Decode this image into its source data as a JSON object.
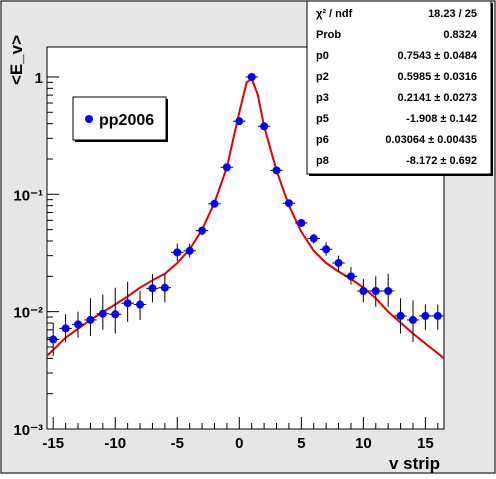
{
  "legend": {
    "label": "pp2006"
  },
  "stats": {
    "rows": [
      {
        "label": "χ² / ndf",
        "value": "18.23 / 25"
      },
      {
        "label": "Prob",
        "value": "0.8324"
      },
      {
        "label": "p0",
        "value": "0.7543 ± 0.0484"
      },
      {
        "label": "p2",
        "value": "0.5985 ± 0.0316"
      },
      {
        "label": "p3",
        "value": "0.2141 ± 0.0273"
      },
      {
        "label": "p5",
        "value": "-1.908 ± 0.142"
      },
      {
        "label": "p6",
        "value": "0.03064 ± 0.00435"
      },
      {
        "label": "p8",
        "value": "-8.172 ± 0.692"
      }
    ]
  },
  "colors": {
    "marker": "#0000ff",
    "fit": "#e00000",
    "frame": "#000000",
    "canvas_bg": "#e6e6e6",
    "pad_bg": "#ffffff"
  },
  "chart_data": {
    "type": "scatter",
    "xlabel": "v strip",
    "ylabel": "<E_v>",
    "xlim": [
      -15.5,
      16.5
    ],
    "ylim": [
      0.001,
      1.8
    ],
    "yscale": "log",
    "x_ticks": [
      "-15",
      "-10",
      "-5",
      "0",
      "5",
      "10",
      "15"
    ],
    "y_ticks": [
      "10⁻³",
      "10⁻²",
      "10⁻¹",
      "1"
    ],
    "legend_position": "top-left",
    "series": [
      {
        "name": "pp2006",
        "points": [
          {
            "x": -15,
            "y": 0.0058,
            "elo": 0.0042,
            "ehi": 0.008
          },
          {
            "x": -14,
            "y": 0.0072,
            "elo": 0.0055,
            "ehi": 0.0095
          },
          {
            "x": -13,
            "y": 0.0078,
            "elo": 0.006,
            "ehi": 0.01
          },
          {
            "x": -12,
            "y": 0.0085,
            "elo": 0.0062,
            "ehi": 0.013
          },
          {
            "x": -11,
            "y": 0.0096,
            "elo": 0.007,
            "ehi": 0.014
          },
          {
            "x": -10,
            "y": 0.0095,
            "elo": 0.0065,
            "ehi": 0.016
          },
          {
            "x": -9,
            "y": 0.0118,
            "elo": 0.0082,
            "ehi": 0.018
          },
          {
            "x": -8,
            "y": 0.0115,
            "elo": 0.0085,
            "ehi": 0.015
          },
          {
            "x": -7,
            "y": 0.0158,
            "elo": 0.012,
            "ehi": 0.021
          },
          {
            "x": -6,
            "y": 0.016,
            "elo": 0.012,
            "ehi": 0.021
          },
          {
            "x": -5,
            "y": 0.032,
            "elo": 0.027,
            "ehi": 0.038
          },
          {
            "x": -4,
            "y": 0.033,
            "elo": 0.029,
            "ehi": 0.038
          },
          {
            "x": -3,
            "y": 0.049,
            "elo": 0.045,
            "ehi": 0.053
          },
          {
            "x": -2,
            "y": 0.083,
            "elo": 0.079,
            "ehi": 0.087
          },
          {
            "x": -1,
            "y": 0.17,
            "elo": 0.165,
            "ehi": 0.175
          },
          {
            "x": 0,
            "y": 0.42,
            "elo": 0.41,
            "ehi": 0.43
          },
          {
            "x": 1,
            "y": 1.0,
            "elo": 0.98,
            "ehi": 1.02
          },
          {
            "x": 2,
            "y": 0.38,
            "elo": 0.37,
            "ehi": 0.39
          },
          {
            "x": 3,
            "y": 0.16,
            "elo": 0.155,
            "ehi": 0.165
          },
          {
            "x": 4,
            "y": 0.084,
            "elo": 0.08,
            "ehi": 0.088
          },
          {
            "x": 5,
            "y": 0.057,
            "elo": 0.053,
            "ehi": 0.061
          },
          {
            "x": 6,
            "y": 0.042,
            "elo": 0.038,
            "ehi": 0.046
          },
          {
            "x": 7,
            "y": 0.034,
            "elo": 0.03,
            "ehi": 0.039
          },
          {
            "x": 8,
            "y": 0.026,
            "elo": 0.022,
            "ehi": 0.03
          },
          {
            "x": 9,
            "y": 0.02,
            "elo": 0.017,
            "ehi": 0.024
          },
          {
            "x": 10,
            "y": 0.015,
            "elo": 0.012,
            "ehi": 0.019
          },
          {
            "x": 11,
            "y": 0.015,
            "elo": 0.011,
            "ehi": 0.02
          },
          {
            "x": 12,
            "y": 0.015,
            "elo": 0.011,
            "ehi": 0.021
          },
          {
            "x": 13,
            "y": 0.0092,
            "elo": 0.0065,
            "ehi": 0.013
          },
          {
            "x": 14,
            "y": 0.0085,
            "elo": 0.0055,
            "ehi": 0.0125
          },
          {
            "x": 15,
            "y": 0.0092,
            "elo": 0.007,
            "ehi": 0.0115
          },
          {
            "x": 16,
            "y": 0.0092,
            "elo": 0.007,
            "ehi": 0.0115
          }
        ]
      },
      {
        "name": "",
        "kind": "fit-curve",
        "points": [
          {
            "x": -15.5,
            "y": 0.0042
          },
          {
            "x": -14,
            "y": 0.006
          },
          {
            "x": -12,
            "y": 0.0085
          },
          {
            "x": -10,
            "y": 0.0115
          },
          {
            "x": -9,
            "y": 0.0135
          },
          {
            "x": -8,
            "y": 0.016
          },
          {
            "x": -7,
            "y": 0.0185
          },
          {
            "x": -6,
            "y": 0.021
          },
          {
            "x": -5,
            "y": 0.026
          },
          {
            "x": -4,
            "y": 0.034
          },
          {
            "x": -3,
            "y": 0.05
          },
          {
            "x": -2,
            "y": 0.085
          },
          {
            "x": -1,
            "y": 0.17
          },
          {
            "x": 0,
            "y": 0.5
          },
          {
            "x": 0.6,
            "y": 0.9
          },
          {
            "x": 1,
            "y": 0.97
          },
          {
            "x": 1.5,
            "y": 0.7
          },
          {
            "x": 2,
            "y": 0.38
          },
          {
            "x": 3,
            "y": 0.16
          },
          {
            "x": 4,
            "y": 0.08
          },
          {
            "x": 5,
            "y": 0.048
          },
          {
            "x": 6,
            "y": 0.033
          },
          {
            "x": 7,
            "y": 0.026
          },
          {
            "x": 8,
            "y": 0.022
          },
          {
            "x": 9,
            "y": 0.019
          },
          {
            "x": 10,
            "y": 0.016
          },
          {
            "x": 11,
            "y": 0.013
          },
          {
            "x": 12,
            "y": 0.01
          },
          {
            "x": 14,
            "y": 0.0065
          },
          {
            "x": 16.5,
            "y": 0.004
          }
        ]
      }
    ]
  }
}
